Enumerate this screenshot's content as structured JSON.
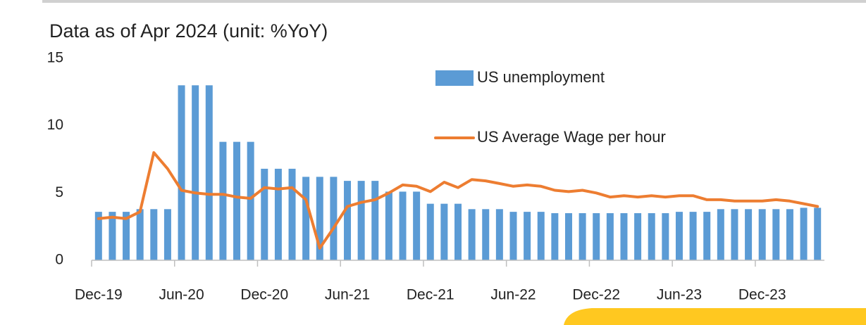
{
  "chart_data": {
    "type": "bar-line",
    "title": "Data as of Apr 2024 (unit: %YoY)",
    "categories": [
      "Dec-19",
      null,
      null,
      null,
      null,
      null,
      "Jun-20",
      null,
      null,
      null,
      null,
      null,
      "Dec-20",
      null,
      null,
      null,
      null,
      null,
      "Jun-21",
      null,
      null,
      null,
      null,
      null,
      "Dec-21",
      null,
      null,
      null,
      null,
      null,
      "Jun-22",
      null,
      null,
      null,
      null,
      null,
      "Dec-22",
      null,
      null,
      null,
      null,
      null,
      "Jun-23",
      null,
      null,
      null,
      null,
      null,
      "Dec-23",
      null,
      null,
      null,
      null
    ],
    "series": [
      {
        "name": "US unemployment",
        "type": "bar",
        "color": "#5b9bd5",
        "values": [
          3.6,
          3.6,
          3.6,
          3.8,
          3.8,
          3.8,
          13.0,
          13.0,
          13.0,
          8.8,
          8.8,
          8.8,
          6.8,
          6.8,
          6.8,
          6.2,
          6.2,
          6.2,
          5.9,
          5.9,
          5.9,
          5.1,
          5.1,
          5.1,
          4.2,
          4.2,
          4.2,
          3.8,
          3.8,
          3.8,
          3.6,
          3.6,
          3.6,
          3.5,
          3.5,
          3.5,
          3.5,
          3.5,
          3.5,
          3.5,
          3.5,
          3.5,
          3.6,
          3.6,
          3.6,
          3.8,
          3.8,
          3.8,
          3.8,
          3.8,
          3.8,
          3.9,
          3.9
        ]
      },
      {
        "name": "US Average Wage per hour",
        "type": "line",
        "color": "#ed7d31",
        "values": [
          3.1,
          3.2,
          3.1,
          3.6,
          8.0,
          6.8,
          5.2,
          5.0,
          4.9,
          4.9,
          4.7,
          4.6,
          5.4,
          5.3,
          5.4,
          4.5,
          0.9,
          2.4,
          4.0,
          4.3,
          4.5,
          5.0,
          5.6,
          5.5,
          5.1,
          5.8,
          5.4,
          6.0,
          5.9,
          5.7,
          5.5,
          5.6,
          5.5,
          5.2,
          5.1,
          5.2,
          5.0,
          4.7,
          4.8,
          4.7,
          4.8,
          4.7,
          4.8,
          4.8,
          4.5,
          4.5,
          4.4,
          4.4,
          4.4,
          4.5,
          4.4,
          4.2,
          4.0
        ]
      }
    ],
    "ylim": [
      0,
      15
    ],
    "yticks": [
      0,
      5,
      10,
      15
    ],
    "grid": false
  }
}
